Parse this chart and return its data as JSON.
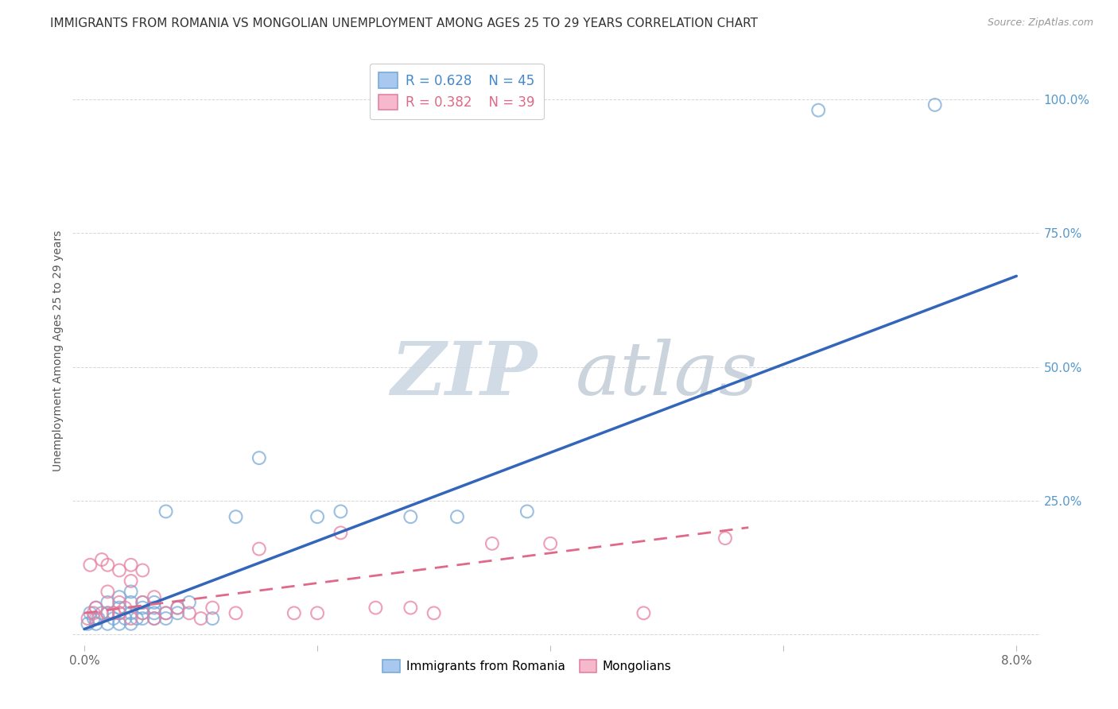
{
  "title": "IMMIGRANTS FROM ROMANIA VS MONGOLIAN UNEMPLOYMENT AMONG AGES 25 TO 29 YEARS CORRELATION CHART",
  "source": "Source: ZipAtlas.com",
  "ylabel": "Unemployment Among Ages 25 to 29 years",
  "xlim": [
    -0.001,
    0.082
  ],
  "ylim": [
    -0.02,
    1.08
  ],
  "xticks": [
    0.0,
    0.02,
    0.04,
    0.06,
    0.08
  ],
  "xticklabels": [
    "0.0%",
    "",
    "",
    "",
    "8.0%"
  ],
  "yticks_right": [
    0.0,
    0.25,
    0.5,
    0.75,
    1.0
  ],
  "yticklabels_right": [
    "",
    "25.0%",
    "50.0%",
    "75.0%",
    "100.0%"
  ],
  "legend_blue_r": "R = 0.628",
  "legend_blue_n": "N = 45",
  "legend_pink_r": "R = 0.382",
  "legend_pink_n": "N = 39",
  "blue_color": "#A8C8F0",
  "blue_edge_color": "#7AAAD8",
  "blue_line_color": "#3366BB",
  "pink_color": "#F5B8CC",
  "pink_edge_color": "#E880A0",
  "pink_line_color": "#E06888",
  "legend_r_blue": "#4488CC",
  "legend_n_blue": "#4488CC",
  "legend_r_pink": "#E06888",
  "legend_n_pink": "#E06888",
  "right_tick_color": "#5599CC",
  "watermark_zip_color": "#C5D5E5",
  "watermark_atlas_color": "#C0CCD8",
  "grid_color": "#CCCCCC",
  "background_color": "#FFFFFF",
  "blue_scatter_x": [
    0.0003,
    0.0005,
    0.0008,
    0.001,
    0.001,
    0.0012,
    0.0015,
    0.002,
    0.002,
    0.002,
    0.0025,
    0.003,
    0.003,
    0.003,
    0.003,
    0.0035,
    0.004,
    0.004,
    0.004,
    0.004,
    0.0045,
    0.005,
    0.005,
    0.005,
    0.005,
    0.006,
    0.006,
    0.006,
    0.006,
    0.007,
    0.007,
    0.007,
    0.008,
    0.008,
    0.009,
    0.011,
    0.013,
    0.015,
    0.02,
    0.022,
    0.028,
    0.032,
    0.038,
    0.063,
    0.073
  ],
  "blue_scatter_y": [
    0.02,
    0.04,
    0.03,
    0.02,
    0.05,
    0.03,
    0.04,
    0.02,
    0.04,
    0.06,
    0.03,
    0.02,
    0.04,
    0.05,
    0.07,
    0.03,
    0.02,
    0.04,
    0.06,
    0.08,
    0.03,
    0.04,
    0.06,
    0.03,
    0.05,
    0.03,
    0.05,
    0.06,
    0.04,
    0.03,
    0.04,
    0.23,
    0.04,
    0.05,
    0.06,
    0.03,
    0.22,
    0.33,
    0.22,
    0.23,
    0.22,
    0.22,
    0.23,
    0.98,
    0.99
  ],
  "pink_scatter_x": [
    0.0003,
    0.0005,
    0.0008,
    0.001,
    0.001,
    0.0015,
    0.002,
    0.002,
    0.002,
    0.0025,
    0.003,
    0.003,
    0.003,
    0.0035,
    0.004,
    0.004,
    0.004,
    0.005,
    0.005,
    0.005,
    0.006,
    0.006,
    0.007,
    0.008,
    0.009,
    0.01,
    0.011,
    0.013,
    0.015,
    0.018,
    0.02,
    0.022,
    0.025,
    0.028,
    0.03,
    0.035,
    0.04,
    0.048,
    0.055
  ],
  "pink_scatter_y": [
    0.03,
    0.13,
    0.04,
    0.03,
    0.05,
    0.14,
    0.04,
    0.08,
    0.13,
    0.04,
    0.06,
    0.04,
    0.12,
    0.05,
    0.03,
    0.1,
    0.13,
    0.04,
    0.12,
    0.06,
    0.03,
    0.07,
    0.04,
    0.05,
    0.04,
    0.03,
    0.05,
    0.04,
    0.16,
    0.04,
    0.04,
    0.19,
    0.05,
    0.05,
    0.04,
    0.17,
    0.17,
    0.04,
    0.18
  ],
  "blue_trend_x": [
    0.0,
    0.08
  ],
  "blue_trend_y": [
    0.01,
    0.67
  ],
  "pink_trend_x": [
    0.0,
    0.057
  ],
  "pink_trend_y": [
    0.04,
    0.2
  ],
  "title_fontsize": 11,
  "label_fontsize": 10,
  "tick_fontsize": 11,
  "legend_fontsize": 12
}
